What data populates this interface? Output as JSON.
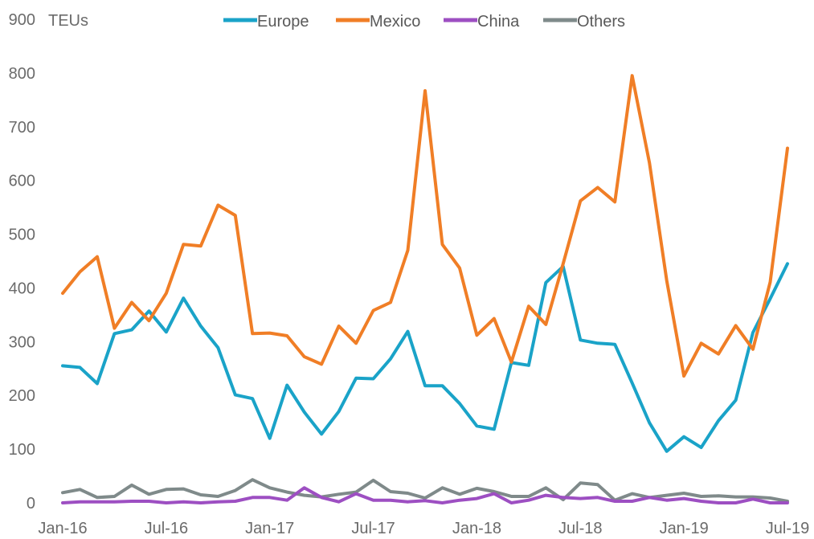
{
  "chart_data": {
    "type": "line",
    "title": "",
    "ylabel": "TEUs",
    "xlabel": "",
    "ylim": [
      0,
      900
    ],
    "yticks": [
      "0",
      "100",
      "200",
      "300",
      "400",
      "500",
      "600",
      "700",
      "800",
      "900"
    ],
    "grid": false,
    "legend_position": "top",
    "x_tick_labels": [
      "Jan-16",
      "Jul-16",
      "Jan-17",
      "Jul-17",
      "Jan-18",
      "Jul-18",
      "Jan-19",
      "Jul-19"
    ],
    "x": [
      "Jan-16",
      "Feb-16",
      "Mar-16",
      "Apr-16",
      "May-16",
      "Jun-16",
      "Jul-16",
      "Aug-16",
      "Sep-16",
      "Oct-16",
      "Nov-16",
      "Dec-16",
      "Jan-17",
      "Feb-17",
      "Mar-17",
      "Apr-17",
      "May-17",
      "Jun-17",
      "Jul-17",
      "Aug-17",
      "Sep-17",
      "Oct-17",
      "Nov-17",
      "Dec-17",
      "Jan-18",
      "Feb-18",
      "Mar-18",
      "Apr-18",
      "May-18",
      "Jun-18",
      "Jul-18",
      "Aug-18",
      "Sep-18",
      "Oct-18",
      "Nov-18",
      "Dec-18",
      "Jan-19",
      "Feb-19",
      "Mar-19",
      "Apr-19",
      "May-19",
      "Jun-19",
      "Jul-19"
    ],
    "series": [
      {
        "name": "Europe",
        "color": "#1aa3c8",
        "values": [
          255,
          252,
          222,
          315,
          322,
          357,
          318,
          381,
          329,
          289,
          201,
          194,
          120,
          219,
          169,
          128,
          170,
          232,
          231,
          268,
          319,
          218,
          218,
          185,
          143,
          137,
          261,
          256,
          410,
          440,
          303,
          297,
          295,
          223,
          149,
          96,
          123,
          103,
          153,
          191,
          317,
          380,
          445
        ]
      },
      {
        "name": "Mexico",
        "color": "#f07e26",
        "values": [
          390,
          430,
          458,
          325,
          373,
          339,
          390,
          481,
          478,
          554,
          535,
          315,
          316,
          311,
          272,
          258,
          329,
          297,
          358,
          373,
          470,
          767,
          481,
          437,
          312,
          343,
          262,
          366,
          332,
          445,
          562,
          587,
          560,
          795,
          633,
          414,
          236,
          297,
          277,
          330,
          286,
          411,
          660
        ]
      },
      {
        "name": "China",
        "color": "#9d4fc2",
        "values": [
          0,
          2,
          2,
          2,
          3,
          3,
          0,
          2,
          0,
          2,
          3,
          10,
          10,
          5,
          28,
          10,
          2,
          17,
          5,
          5,
          2,
          4,
          0,
          5,
          8,
          17,
          0,
          5,
          14,
          10,
          8,
          10,
          3,
          3,
          10,
          5,
          8,
          3,
          0,
          0,
          7,
          0,
          0
        ]
      },
      {
        "name": "Others",
        "color": "#7f8a8a",
        "values": [
          19,
          25,
          10,
          12,
          33,
          16,
          25,
          26,
          15,
          12,
          23,
          43,
          28,
          20,
          14,
          11,
          16,
          20,
          42,
          21,
          18,
          9,
          28,
          16,
          27,
          21,
          12,
          12,
          28,
          6,
          37,
          34,
          5,
          17,
          10,
          14,
          18,
          12,
          13,
          11,
          11,
          9,
          3
        ]
      }
    ]
  }
}
